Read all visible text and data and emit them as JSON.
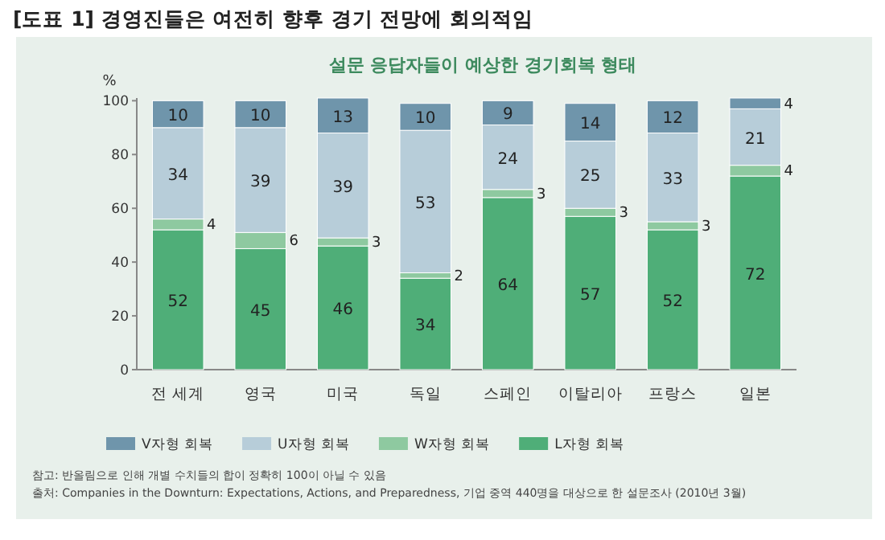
{
  "chart_data": {
    "type": "bar",
    "stacked": true,
    "title": "[도표 1] 경영진들은 여전히 향후 경기 전망에 회의적임",
    "subtitle": "설문 응답자들이 예상한 경기회복 형태",
    "ylabel": "%",
    "categories": [
      "전 세계",
      "영국",
      "미국",
      "독일",
      "스페인",
      "이탈리아",
      "프랑스",
      "일본"
    ],
    "series": [
      {
        "name": "L자형 회복",
        "color": "#4fae78",
        "values": [
          52,
          45,
          46,
          34,
          64,
          57,
          52,
          72
        ]
      },
      {
        "name": "W자형 회복",
        "color": "#8ec9a0",
        "values": [
          4,
          6,
          3,
          2,
          3,
          3,
          3,
          4
        ]
      },
      {
        "name": "U자형 회복",
        "color": "#b7cdd9",
        "values": [
          34,
          39,
          39,
          53,
          24,
          25,
          33,
          21
        ]
      },
      {
        "name": "V자형 회복",
        "color": "#6f95ab",
        "values": [
          10,
          10,
          13,
          10,
          9,
          14,
          12,
          4
        ]
      }
    ],
    "ylim": [
      0,
      101
    ],
    "yticks": [
      0,
      20,
      40,
      60,
      80,
      100
    ],
    "data_labels": true,
    "legend": "bottom",
    "grid": false,
    "annotations": [
      "참고: 반올림으로 인해 개별 수치들의 합이 정확히 100이 아닐 수 있음",
      "출처: Companies in the Downturn: Expectations, Actions, and Preparedness, 기업 중역 440명을 대상으로 한 설문조사 (2010년 3월)"
    ]
  }
}
